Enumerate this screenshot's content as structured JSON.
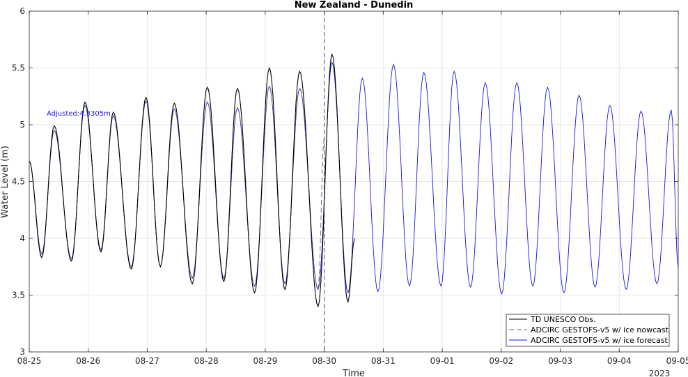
{
  "chart_data": {
    "type": "line",
    "title": "New Zealand - Dunedin",
    "xlabel": "Time",
    "ylabel": "Water Level (m)",
    "x_unit": "days",
    "x_range": [
      "2023-08-25",
      "2023-09-05"
    ],
    "xlim": [
      0,
      11
    ],
    "ylim": [
      3,
      6
    ],
    "yticks": [
      "3",
      "3.5",
      "4",
      "4.5",
      "5",
      "5.5",
      "6"
    ],
    "xticks": [
      "08-25",
      "08-26",
      "08-27",
      "08-28",
      "08-29",
      "08-30",
      "08-31",
      "09-01",
      "09-02",
      "09-03",
      "09-04",
      "09-05"
    ],
    "year_label": "2023",
    "nowcast_marker": "08-30",
    "annotation": "Adjusted:4.3305m",
    "legend_position": "bottom-right",
    "grid": true,
    "series": [
      {
        "name": "TD UNESCO Obs.",
        "color": "#000000",
        "style": "solid",
        "extrema": [
          [
            "08-25 00:00",
            4.68
          ],
          [
            "08-25 05:05",
            3.83
          ],
          [
            "08-25 10:10",
            4.99
          ],
          [
            "08-25 17:10",
            3.8
          ],
          [
            "08-25 22:40",
            5.2
          ],
          [
            "08-26 05:10",
            3.88
          ],
          [
            "08-26 10:10",
            5.11
          ],
          [
            "08-26 17:30",
            3.73
          ],
          [
            "08-26 23:30",
            5.24
          ],
          [
            "08-27 05:20",
            3.75
          ],
          [
            "08-27 11:00",
            5.19
          ],
          [
            "08-27 18:20",
            3.6
          ],
          [
            "08-28 00:25",
            5.33
          ],
          [
            "08-28 07:10",
            3.62
          ],
          [
            "08-28 12:40",
            5.32
          ],
          [
            "08-28 19:40",
            3.52
          ],
          [
            "08-29 01:40",
            5.5
          ],
          [
            "08-29 08:00",
            3.55
          ],
          [
            "08-29 14:00",
            5.47
          ],
          [
            "08-29 21:30",
            3.4
          ],
          [
            "08-30 03:10",
            5.62
          ],
          [
            "08-30 09:40",
            3.44
          ],
          [
            "08-30 12:20",
            4.0
          ]
        ]
      },
      {
        "name": "ADCIRC GESTOFS-v5 w/ ice nowcast",
        "color": "#666666",
        "style": "dashed",
        "extrema": [
          [
            "08-25 00:00",
            4.68
          ],
          [
            "08-25 05:05",
            3.86
          ],
          [
            "08-25 10:10",
            4.95
          ],
          [
            "08-25 17:10",
            3.82
          ],
          [
            "08-25 22:40",
            5.17
          ],
          [
            "08-26 05:10",
            3.9
          ],
          [
            "08-26 10:10",
            5.08
          ],
          [
            "08-26 17:30",
            3.75
          ],
          [
            "08-26 23:30",
            5.21
          ],
          [
            "08-27 05:20",
            3.75
          ],
          [
            "08-27 11:00",
            5.14
          ],
          [
            "08-27 18:20",
            3.65
          ],
          [
            "08-28 00:25",
            5.2
          ],
          [
            "08-28 07:10",
            3.65
          ],
          [
            "08-28 12:40",
            5.15
          ],
          [
            "08-28 19:40",
            3.58
          ],
          [
            "08-29 01:40",
            5.34
          ],
          [
            "08-29 08:00",
            3.6
          ],
          [
            "08-29 14:00",
            5.32
          ],
          [
            "08-29 21:30",
            3.55
          ],
          [
            "08-30 00:00",
            4.9
          ]
        ]
      },
      {
        "name": "ADCIRC GESTOFS-v5 w/ ice forecast",
        "color": "#1414e6",
        "style": "solid",
        "extrema": [
          [
            "08-25 00:00",
            4.68
          ],
          [
            "08-25 05:05",
            3.86
          ],
          [
            "08-25 10:10",
            4.95
          ],
          [
            "08-25 17:10",
            3.82
          ],
          [
            "08-25 22:40",
            5.17
          ],
          [
            "08-26 05:10",
            3.9
          ],
          [
            "08-26 10:10",
            5.08
          ],
          [
            "08-26 17:30",
            3.75
          ],
          [
            "08-26 23:30",
            5.21
          ],
          [
            "08-27 05:20",
            3.75
          ],
          [
            "08-27 11:00",
            5.14
          ],
          [
            "08-27 18:20",
            3.65
          ],
          [
            "08-28 00:25",
            5.2
          ],
          [
            "08-28 07:10",
            3.65
          ],
          [
            "08-28 12:40",
            5.15
          ],
          [
            "08-28 19:40",
            3.58
          ],
          [
            "08-29 01:40",
            5.34
          ],
          [
            "08-29 08:00",
            3.6
          ],
          [
            "08-29 14:00",
            5.32
          ],
          [
            "08-29 21:30",
            3.55
          ],
          [
            "08-30 03:10",
            5.55
          ],
          [
            "08-30 09:40",
            3.52
          ],
          [
            "08-30 15:30",
            5.41
          ],
          [
            "08-30 21:50",
            3.53
          ],
          [
            "08-31 04:10",
            5.53
          ],
          [
            "08-31 10:40",
            3.58
          ],
          [
            "08-31 16:30",
            5.46
          ],
          [
            "08-31 23:30",
            3.58
          ],
          [
            "09-01 04:50",
            5.47
          ],
          [
            "09-01 11:30",
            3.57
          ],
          [
            "09-01 17:30",
            5.37
          ],
          [
            "09-02 00:10",
            3.51
          ],
          [
            "09-02 06:20",
            5.37
          ],
          [
            "09-02 12:50",
            3.58
          ],
          [
            "09-02 18:50",
            5.33
          ],
          [
            "09-03 01:30",
            3.52
          ],
          [
            "09-03 07:40",
            5.26
          ],
          [
            "09-03 14:10",
            3.57
          ],
          [
            "09-03 20:10",
            5.17
          ],
          [
            "09-04 02:50",
            3.55
          ],
          [
            "09-04 08:50",
            5.12
          ],
          [
            "09-04 15:20",
            3.6
          ],
          [
            "09-04 21:10",
            5.13
          ],
          [
            "09-05 00:00",
            3.74
          ]
        ]
      }
    ]
  }
}
